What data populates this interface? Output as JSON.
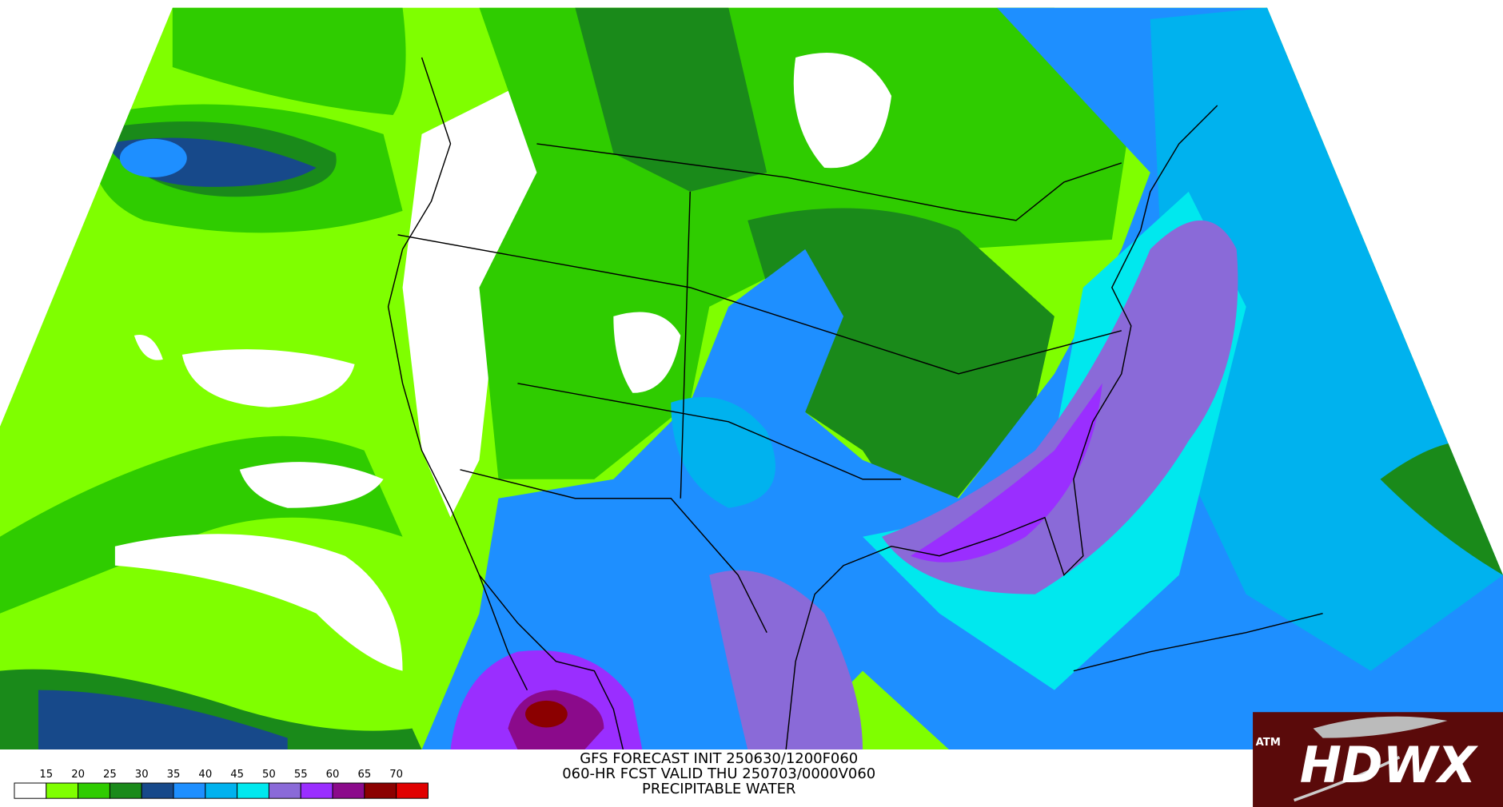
{
  "title_lines": [
    "GFS FORECAST INIT 250630/1200F060",
    "060-HR FCST VALID THU 250703/0000V060",
    "PRECIPITABLE WATER"
  ],
  "legend": {
    "labels": [
      15,
      20,
      25,
      30,
      35,
      40,
      45,
      50,
      55,
      60,
      65,
      70
    ],
    "colors": [
      "#ffffff",
      "#7fff00",
      "#2fcc00",
      "#1a8a1a",
      "#17498a",
      "#1e8fff",
      "#00b2ee",
      "#00e8ee",
      "#8a6ad8",
      "#9a2eff",
      "#8b0a8b",
      "#8b0000",
      "#e00000"
    ]
  },
  "logo": {
    "badge": "ATM",
    "text": "HDWX"
  }
}
